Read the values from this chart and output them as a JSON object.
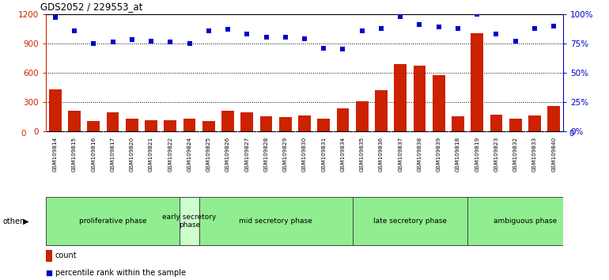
{
  "title": "GDS2052 / 229553_at",
  "samples": [
    "GSM109814",
    "GSM109815",
    "GSM109816",
    "GSM109817",
    "GSM109820",
    "GSM109821",
    "GSM109822",
    "GSM109824",
    "GSM109825",
    "GSM109826",
    "GSM109827",
    "GSM109828",
    "GSM109829",
    "GSM109830",
    "GSM109831",
    "GSM109834",
    "GSM109835",
    "GSM109836",
    "GSM109837",
    "GSM109838",
    "GSM109839",
    "GSM109818",
    "GSM109819",
    "GSM109823",
    "GSM109832",
    "GSM109833",
    "GSM109840"
  ],
  "counts": [
    430,
    210,
    110,
    200,
    130,
    120,
    120,
    130,
    110,
    210,
    200,
    160,
    150,
    165,
    130,
    240,
    310,
    420,
    690,
    670,
    580,
    160,
    1000,
    170,
    130,
    165,
    260
  ],
  "percentile": [
    97,
    86,
    75,
    76,
    78,
    77,
    76,
    75,
    86,
    87,
    83,
    80,
    80,
    79,
    71,
    70,
    86,
    88,
    98,
    91,
    89,
    88,
    100,
    83,
    77,
    88,
    90
  ],
  "phases": [
    {
      "label": "proliferative phase",
      "start": 0,
      "end": 7,
      "color": "#90EE90"
    },
    {
      "label": "early secretory\nphase",
      "start": 7,
      "end": 8,
      "color": "#ccffcc"
    },
    {
      "label": "mid secretory phase",
      "start": 8,
      "end": 16,
      "color": "#90EE90"
    },
    {
      "label": "late secretory phase",
      "start": 16,
      "end": 22,
      "color": "#90EE90"
    },
    {
      "label": "ambiguous phase",
      "start": 22,
      "end": 28,
      "color": "#90EE90"
    }
  ],
  "ylim_left": [
    0,
    1200
  ],
  "ylim_right": [
    0,
    100
  ],
  "yticks_left": [
    0,
    300,
    600,
    900,
    1200
  ],
  "yticks_right": [
    0,
    25,
    50,
    75,
    100
  ],
  "bar_color": "#cc2200",
  "dot_color": "#0000cc",
  "tick_bg_color": "#c8c8c8",
  "phase_green": "#66cc66",
  "phase_lightgreen": "#ccffcc",
  "other_label": "other",
  "legend_count_label": "count",
  "legend_pct_label": "percentile rank within the sample"
}
